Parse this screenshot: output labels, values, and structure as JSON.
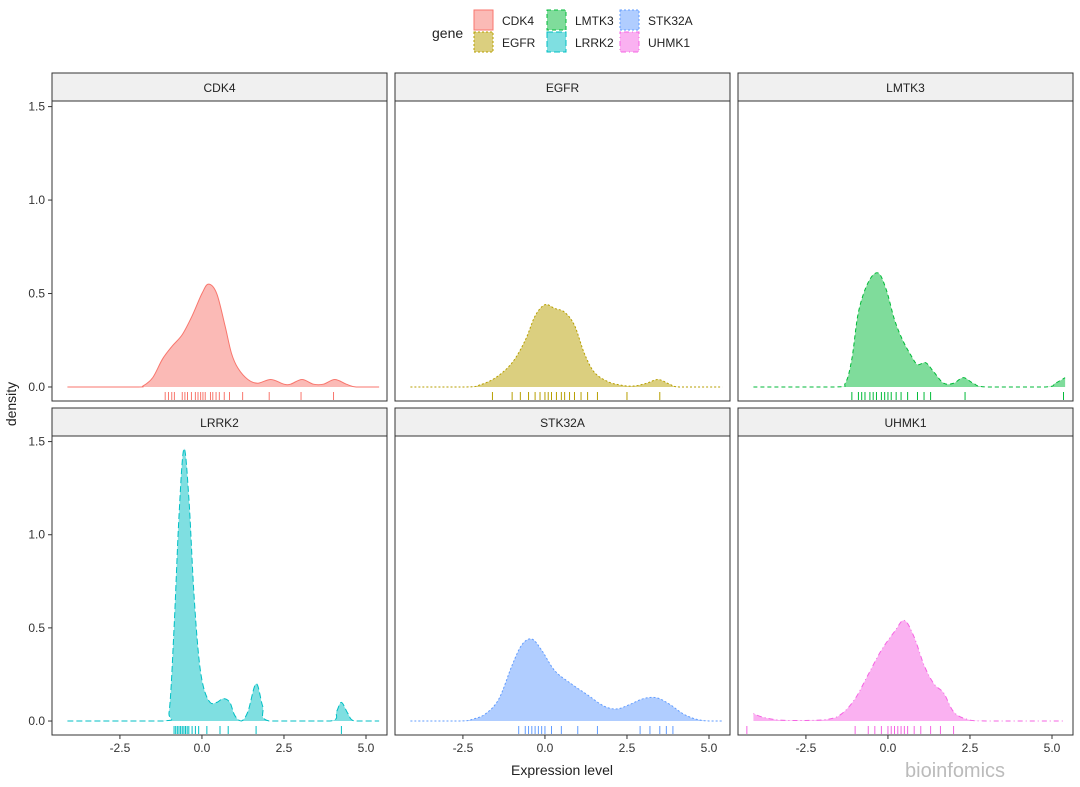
{
  "chart_data": {
    "type": "area",
    "subtype": "faceted density with rug",
    "xlabel": "Expression level",
    "ylabel": "density",
    "xlim": [
      -4.57,
      5.64
    ],
    "ylim": [
      -0.075,
      1.53
    ],
    "x_ticks": [
      "-2.5",
      "0.0",
      "2.5",
      "5.0"
    ],
    "x_tick_values": [
      -2.5,
      0,
      2.5,
      5
    ],
    "y_ticks": [
      "0.0",
      "0.5",
      "1.0",
      "1.5"
    ],
    "y_tick_values": [
      0,
      0.5,
      1,
      1.5
    ],
    "grid": false,
    "legend": {
      "title": "gene",
      "position": "top"
    },
    "facets": [
      "CDK4",
      "EGFR",
      "LMTK3",
      "LRRK2",
      "STK32A",
      "UHMK1"
    ],
    "series": [
      {
        "name": "CDK4",
        "color": "#F8766D",
        "linetype": "solid",
        "points": [
          [
            -4.1,
            0
          ],
          [
            -2,
            0
          ],
          [
            -1.8,
            0.005
          ],
          [
            -1.5,
            0.05
          ],
          [
            -1.2,
            0.15
          ],
          [
            -0.9,
            0.22
          ],
          [
            -0.6,
            0.28
          ],
          [
            -0.3,
            0.38
          ],
          [
            0,
            0.5
          ],
          [
            0.2,
            0.55
          ],
          [
            0.45,
            0.5
          ],
          [
            0.7,
            0.33
          ],
          [
            0.9,
            0.18
          ],
          [
            1.1,
            0.1
          ],
          [
            1.4,
            0.04
          ],
          [
            1.7,
            0.02
          ],
          [
            2.1,
            0.04
          ],
          [
            2.5,
            0.015
          ],
          [
            2.7,
            0.015
          ],
          [
            3.05,
            0.04
          ],
          [
            3.4,
            0.015
          ],
          [
            3.7,
            0.015
          ],
          [
            4.05,
            0.04
          ],
          [
            4.4,
            0.015
          ],
          [
            4.7,
            0
          ],
          [
            5.4,
            0
          ]
        ],
        "rug": [
          -1.12,
          -1.02,
          -0.92,
          -0.84,
          -0.6,
          -0.52,
          -0.44,
          -0.32,
          -0.2,
          -0.12,
          -0.04,
          0.03,
          0.1,
          0.26,
          0.33,
          0.43,
          0.53,
          0.68,
          0.84,
          1.24,
          2.05,
          3.02,
          4.01
        ]
      },
      {
        "name": "EGFR",
        "color": "#B79F00",
        "linetype": "dotted",
        "points": [
          [
            -4.1,
            0
          ],
          [
            -2.4,
            0
          ],
          [
            -2,
            0.01
          ],
          [
            -1.5,
            0.05
          ],
          [
            -1,
            0.13
          ],
          [
            -0.6,
            0.25
          ],
          [
            -0.3,
            0.38
          ],
          [
            0,
            0.44
          ],
          [
            0.3,
            0.42
          ],
          [
            0.6,
            0.4
          ],
          [
            0.9,
            0.33
          ],
          [
            1.2,
            0.18
          ],
          [
            1.5,
            0.08
          ],
          [
            1.9,
            0.03
          ],
          [
            2.3,
            0.01
          ],
          [
            2.7,
            0.005
          ],
          [
            3.1,
            0.02
          ],
          [
            3.45,
            0.04
          ],
          [
            3.8,
            0.015
          ],
          [
            4.1,
            0
          ],
          [
            5.4,
            0
          ]
        ],
        "rug": [
          -1.6,
          -1,
          -0.75,
          -0.5,
          -0.3,
          -0.15,
          0,
          0.1,
          0.2,
          0.35,
          0.5,
          0.6,
          0.75,
          0.9,
          1.1,
          1.3,
          1.6,
          2.5,
          3.5
        ]
      },
      {
        "name": "LMTK3",
        "color": "#00BA38",
        "linetype": "dashed",
        "points": [
          [
            -4.1,
            0
          ],
          [
            -1.6,
            0
          ],
          [
            -1.3,
            0.02
          ],
          [
            -1.1,
            0.15
          ],
          [
            -0.9,
            0.4
          ],
          [
            -0.6,
            0.56
          ],
          [
            -0.3,
            0.61
          ],
          [
            -0.05,
            0.52
          ],
          [
            0.2,
            0.36
          ],
          [
            0.45,
            0.25
          ],
          [
            0.7,
            0.17
          ],
          [
            0.9,
            0.12
          ],
          [
            1.15,
            0.13
          ],
          [
            1.4,
            0.08
          ],
          [
            1.7,
            0.02
          ],
          [
            2,
            0.02
          ],
          [
            2.3,
            0.05
          ],
          [
            2.6,
            0.02
          ],
          [
            3,
            0
          ],
          [
            4.8,
            0
          ],
          [
            5.1,
            0.02
          ],
          [
            5.4,
            0.05
          ]
        ],
        "rug": [
          -1.1,
          -0.9,
          -0.8,
          -0.7,
          -0.55,
          -0.45,
          -0.35,
          -0.2,
          -0.1,
          0,
          0.1,
          0.25,
          0.4,
          0.6,
          0.9,
          1.1,
          1.3,
          2.35,
          5.35
        ]
      },
      {
        "name": "LRRK2",
        "color": "#00BFC4",
        "linetype": "longdash",
        "points": [
          [
            -4.1,
            0
          ],
          [
            -1.2,
            0
          ],
          [
            -1,
            0.05
          ],
          [
            -0.85,
            0.5
          ],
          [
            -0.7,
            1.1
          ],
          [
            -0.55,
            1.46
          ],
          [
            -0.4,
            1.2
          ],
          [
            -0.25,
            0.7
          ],
          [
            -0.1,
            0.35
          ],
          [
            0.05,
            0.18
          ],
          [
            0.25,
            0.1
          ],
          [
            0.45,
            0.1
          ],
          [
            0.65,
            0.12
          ],
          [
            0.85,
            0.1
          ],
          [
            1,
            0.03
          ],
          [
            1.2,
            0
          ],
          [
            1.4,
            0.05
          ],
          [
            1.65,
            0.2
          ],
          [
            1.85,
            0.08
          ],
          [
            2.05,
            0
          ],
          [
            3.9,
            0
          ],
          [
            4.1,
            0.05
          ],
          [
            4.25,
            0.1
          ],
          [
            4.45,
            0.04
          ],
          [
            4.65,
            0
          ],
          [
            5.4,
            0
          ]
        ],
        "rug": [
          -0.85,
          -0.8,
          -0.75,
          -0.7,
          -0.65,
          -0.6,
          -0.55,
          -0.5,
          -0.45,
          -0.4,
          -0.3,
          -0.2,
          -0.1,
          0.15,
          0.55,
          0.8,
          1.65,
          4.25
        ]
      },
      {
        "name": "STK32A",
        "color": "#619CFF",
        "linetype": "dotted",
        "points": [
          [
            -4.1,
            0
          ],
          [
            -2.6,
            0
          ],
          [
            -2.2,
            0.01
          ],
          [
            -1.8,
            0.04
          ],
          [
            -1.4,
            0.12
          ],
          [
            -1,
            0.3
          ],
          [
            -0.7,
            0.41
          ],
          [
            -0.4,
            0.44
          ],
          [
            -0.1,
            0.38
          ],
          [
            0.3,
            0.27
          ],
          [
            0.8,
            0.2
          ],
          [
            1.3,
            0.14
          ],
          [
            1.8,
            0.08
          ],
          [
            2.2,
            0.065
          ],
          [
            2.6,
            0.09
          ],
          [
            3,
            0.12
          ],
          [
            3.4,
            0.125
          ],
          [
            3.8,
            0.09
          ],
          [
            4.2,
            0.04
          ],
          [
            4.6,
            0.01
          ],
          [
            5,
            0
          ],
          [
            5.4,
            0
          ]
        ],
        "rug": [
          -0.8,
          -0.6,
          -0.5,
          -0.4,
          -0.3,
          -0.2,
          -0.1,
          0,
          0.2,
          0.5,
          1,
          1.6,
          2.9,
          3.2,
          3.5,
          3.7,
          3.9
        ]
      },
      {
        "name": "UHMK1",
        "color": "#F564E3",
        "linetype": "dotdash",
        "points": [
          [
            -4.1,
            0.04
          ],
          [
            -3.8,
            0.02
          ],
          [
            -3.3,
            0.005
          ],
          [
            -2.5,
            0.003
          ],
          [
            -1.8,
            0.01
          ],
          [
            -1.4,
            0.04
          ],
          [
            -1,
            0.12
          ],
          [
            -0.6,
            0.25
          ],
          [
            -0.2,
            0.38
          ],
          [
            0.2,
            0.48
          ],
          [
            0.5,
            0.54
          ],
          [
            0.8,
            0.45
          ],
          [
            1.1,
            0.3
          ],
          [
            1.4,
            0.2
          ],
          [
            1.7,
            0.15
          ],
          [
            2,
            0.05
          ],
          [
            2.4,
            0.01
          ],
          [
            3,
            0
          ],
          [
            5.4,
            0
          ]
        ],
        "rug": [
          -4.3,
          -1,
          -0.6,
          -0.4,
          -0.2,
          0,
          0.1,
          0.2,
          0.3,
          0.4,
          0.5,
          0.6,
          0.8,
          1,
          1.3,
          1.6,
          2
        ]
      }
    ]
  },
  "watermark": "bioinfomics"
}
